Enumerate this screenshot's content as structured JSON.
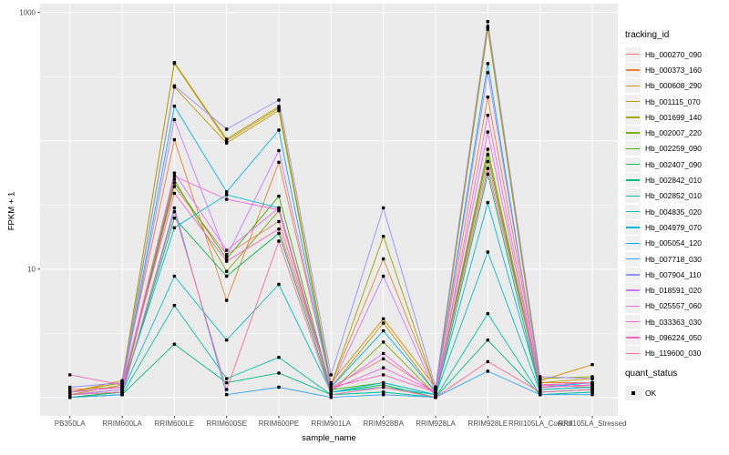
{
  "chart_data": {
    "type": "line",
    "xlabel": "sample_name",
    "ylabel": "FPKM + 1",
    "y_scale": "log10",
    "ylim": [
      0.72,
      1150
    ],
    "grid": true,
    "legend_position": "right",
    "legend_title": "tracking_id",
    "y_ticks": [
      {
        "value": 1000,
        "label": "1000"
      },
      {
        "value": 10,
        "label": "10"
      }
    ],
    "y_major_gridlines": [
      1,
      10,
      100,
      1000
    ],
    "y_minor_gridlines": [
      3.162,
      31.62,
      316.2
    ],
    "x_categories": [
      "PB350LA",
      "RRIM600LA",
      "RRIM600LE",
      "RRIM600SE",
      "RRIM600PE",
      "RRIM901LA",
      "RRIM928BA",
      "RRIM928LA",
      "RRIM928LE",
      "RRII105LA_Control",
      "RRII105LA_Stressed"
    ],
    "series": [
      {
        "name": "Hb_000270_090",
        "color": "#F8766D",
        "values": [
          1.15,
          1.2,
          44,
          13,
          23.5,
          1.2,
          2.0,
          1.1,
          69,
          1.25,
          1.2
        ]
      },
      {
        "name": "Hb_000373_160",
        "color": "#EA8331",
        "values": [
          1.1,
          1.3,
          102,
          5.7,
          68,
          1.25,
          12,
          1.15,
          219,
          1.3,
          1.3
        ]
      },
      {
        "name": "Hb_000608_290",
        "color": "#D89000",
        "values": [
          1.1,
          1.35,
          400,
          100,
          180,
          1.3,
          4.1,
          1.2,
          780,
          1.35,
          1.8
        ]
      },
      {
        "name": "Hb_001115_070",
        "color": "#C09B00",
        "values": [
          1.05,
          1.25,
          262,
          96,
          172,
          1.2,
          3.8,
          1.1,
          740,
          1.3,
          1.4
        ]
      },
      {
        "name": "Hb_001699_140",
        "color": "#A3A500",
        "values": [
          1.1,
          1.3,
          407,
          103,
          185,
          1.25,
          18,
          1.15,
          760,
          1.4,
          1.45
        ]
      },
      {
        "name": "Hb_002007_220",
        "color": "#7CAE00",
        "values": [
          1.05,
          1.15,
          50,
          9.6,
          28.5,
          1.1,
          2.7,
          1.05,
          86,
          1.2,
          1.25
        ]
      },
      {
        "name": "Hb_002259_090",
        "color": "#39B600",
        "values": [
          1.0,
          1.1,
          47,
          12,
          37,
          1.15,
          1.3,
          1.05,
          78,
          1.15,
          1.2
        ]
      },
      {
        "name": "Hb_002407_090",
        "color": "#00BB4E",
        "values": [
          1.0,
          1.1,
          25,
          8.8,
          19,
          1.1,
          1.25,
          1.0,
          55,
          1.1,
          1.15
        ]
      },
      {
        "name": "Hb_002842_010",
        "color": "#00BF7D",
        "values": [
          1.0,
          1.05,
          2.6,
          1.3,
          1.55,
          1.05,
          1.1,
          1.0,
          2.8,
          1.05,
          1.1
        ]
      },
      {
        "name": "Hb_002852_010",
        "color": "#00C1A3",
        "values": [
          1.0,
          1.05,
          5.2,
          1.4,
          2.05,
          1.05,
          1.1,
          1.0,
          4.5,
          1.05,
          1.1
        ]
      },
      {
        "name": "Hb_004835_020",
        "color": "#00BFC4",
        "values": [
          1.05,
          1.1,
          8.8,
          2.8,
          7.6,
          1.1,
          1.2,
          1.05,
          13.6,
          1.1,
          1.15
        ]
      },
      {
        "name": "Hb_004979_070",
        "color": "#00BAE0",
        "values": [
          1.05,
          1.15,
          21,
          38,
          30,
          1.1,
          1.3,
          1.05,
          33,
          1.15,
          1.2
        ]
      },
      {
        "name": "Hb_005054_120",
        "color": "#00B0F6",
        "values": [
          1.1,
          1.2,
          186,
          40,
          121,
          1.2,
          3.3,
          1.1,
          400,
          1.2,
          1.3
        ]
      },
      {
        "name": "Hb_007718_030",
        "color": "#35A2FF",
        "values": [
          1.0,
          1.05,
          30,
          1.05,
          1.2,
          1.0,
          1.05,
          1.0,
          1.6,
          1.05,
          1.05
        ]
      },
      {
        "name": "Hb_007904_110",
        "color": "#9590FF",
        "values": [
          1.2,
          1.3,
          268,
          123,
          208,
          1.5,
          30,
          1.2,
          850,
          1.45,
          1.4
        ]
      },
      {
        "name": "Hb_018591_020",
        "color": "#C77CFF",
        "values": [
          1.1,
          1.2,
          146,
          12.5,
          84,
          1.2,
          8.8,
          1.1,
          340,
          1.25,
          1.3
        ]
      },
      {
        "name": "Hb_025557_060",
        "color": "#E76BF3",
        "values": [
          1.05,
          1.15,
          56,
          14,
          30,
          1.15,
          2.2,
          1.05,
          158,
          1.2,
          1.25
        ]
      },
      {
        "name": "Hb_033363_030",
        "color": "#FA62DB",
        "values": [
          1.1,
          1.2,
          53,
          35,
          29,
          1.15,
          1.7,
          1.1,
          117,
          1.2,
          1.25
        ]
      },
      {
        "name": "Hb_096224_050",
        "color": "#FF62BC",
        "values": [
          1.5,
          1.25,
          39,
          11.5,
          20.5,
          1.2,
          1.5,
          1.1,
          61,
          1.25,
          1.3
        ]
      },
      {
        "name": "Hb_119600_030",
        "color": "#FF6A98",
        "values": [
          1.05,
          1.1,
          28,
          1.15,
          16.5,
          1.05,
          1.2,
          1.0,
          1.9,
          1.1,
          1.15
        ]
      }
    ],
    "quant_status": {
      "title": "quant_status",
      "items": [
        {
          "label": "OK",
          "marker": "black-square"
        }
      ]
    }
  },
  "style": {
    "panel_bg": "#EBEBEB",
    "grid_color": "#FFFFFF",
    "point_color": "#000000",
    "tick_color": "#333333",
    "tick_label_color": "#4d4d4d",
    "legend_key_bg": "#F0F0F0"
  }
}
